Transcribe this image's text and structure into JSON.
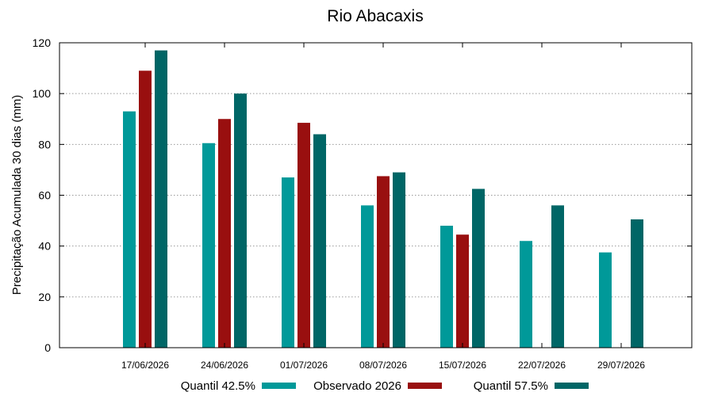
{
  "chart_data": {
    "type": "bar",
    "title": "Rio Abacaxis",
    "xlabel": "",
    "ylabel": "Precipitação Acumulada 30 dias (mm)",
    "ylim": [
      0,
      120
    ],
    "yticks": [
      0,
      20,
      40,
      60,
      80,
      100,
      120
    ],
    "grid": true,
    "legend_position": "bottom",
    "categories": [
      "17/06/2026",
      "24/06/2026",
      "01/07/2026",
      "08/07/2026",
      "15/07/2026",
      "22/07/2026",
      "29/07/2026"
    ],
    "series": [
      {
        "name": "Quantil 42.5%",
        "color": "#009999",
        "values": [
          93,
          80.5,
          67,
          56,
          48,
          42,
          37.5
        ]
      },
      {
        "name": "Observado 2026",
        "color": "#990f0f",
        "values": [
          109,
          90,
          88.5,
          67.5,
          44.5,
          null,
          null
        ]
      },
      {
        "name": "Quantil 57.5%",
        "color": "#006666",
        "values": [
          117,
          100,
          84,
          69,
          62.5,
          56,
          50.5
        ]
      }
    ]
  }
}
